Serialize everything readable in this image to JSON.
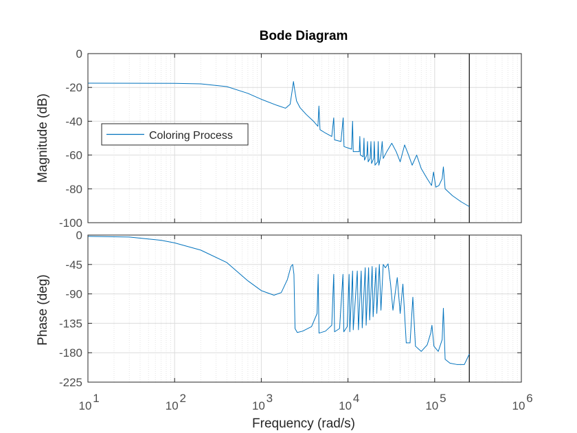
{
  "colors": {
    "series": "#0072bd",
    "grid": "#dcdcdc",
    "axis": "#262626",
    "marker": "#000000"
  },
  "chart_data": {
    "type": "line",
    "title": "Bode Diagram",
    "xlabel": "Frequency  (rad/s)",
    "xscale": "log",
    "xlim": [
      10,
      1000000
    ],
    "x_ticks": [
      {
        "value": 10,
        "base": "10",
        "exp": "1"
      },
      {
        "value": 100,
        "base": "10",
        "exp": "2"
      },
      {
        "value": 1000,
        "base": "10",
        "exp": "3"
      },
      {
        "value": 10000,
        "base": "10",
        "exp": "4"
      },
      {
        "value": 100000,
        "base": "10",
        "exp": "5"
      },
      {
        "value": 1000000,
        "base": "10",
        "exp": "6"
      }
    ],
    "vertical_marker": 251000,
    "legend": {
      "label": "Coloring Process",
      "placement": "middle-left (magnitude axes)"
    },
    "magnitude": {
      "ylabel": "Magnitude (dB)",
      "ylim": [
        -100,
        0
      ],
      "yticks": [
        0,
        -20,
        -40,
        -60,
        -80,
        -100
      ],
      "series": [
        {
          "name": "Coloring Process",
          "points": [
            [
              10,
              -17.5
            ],
            [
              100,
              -17.6
            ],
            [
              200,
              -17.9
            ],
            [
              400,
              -19.5
            ],
            [
              700,
              -23.5
            ],
            [
              1000,
              -27
            ],
            [
              1500,
              -30.5
            ],
            [
              1900,
              -32.3
            ],
            [
              2150,
              -30
            ],
            [
              2300,
              -20
            ],
            [
              2350,
              -16.5
            ],
            [
              2420,
              -21
            ],
            [
              2550,
              -28
            ],
            [
              2800,
              -32
            ],
            [
              3300,
              -36
            ],
            [
              4000,
              -40
            ],
            [
              4500,
              -43
            ],
            [
              4620,
              -31
            ],
            [
              4760,
              -45
            ],
            [
              5500,
              -47
            ],
            [
              6500,
              -49
            ],
            [
              6850,
              -38
            ],
            [
              7000,
              -51
            ],
            [
              8300,
              -52
            ],
            [
              8800,
              -38
            ],
            [
              9000,
              -55
            ],
            [
              11000,
              -56.5
            ],
            [
              11300,
              -40
            ],
            [
              11500,
              -58
            ],
            [
              13500,
              -58
            ],
            [
              13700,
              -49
            ],
            [
              13900,
              -60
            ],
            [
              15000,
              -61
            ],
            [
              15300,
              -50
            ],
            [
              15500,
              -63
            ],
            [
              16500,
              -60
            ],
            [
              16800,
              -52
            ],
            [
              17100,
              -64
            ],
            [
              18000,
              -62
            ],
            [
              18400,
              -52
            ],
            [
              18700,
              -65
            ],
            [
              19800,
              -62
            ],
            [
              20100,
              -52
            ],
            [
              20500,
              -66
            ],
            [
              22000,
              -64
            ],
            [
              22300,
              -52
            ],
            [
              22700,
              -66
            ],
            [
              24000,
              -60
            ],
            [
              24800,
              -52
            ],
            [
              25500,
              -62
            ],
            [
              28000,
              -58
            ],
            [
              32000,
              -53
            ],
            [
              36000,
              -58
            ],
            [
              40000,
              -64
            ],
            [
              45000,
              -54
            ],
            [
              50000,
              -60
            ],
            [
              55000,
              -66
            ],
            [
              62000,
              -60
            ],
            [
              70000,
              -68
            ],
            [
              82000,
              -74
            ],
            [
              92000,
              -78
            ],
            [
              97000,
              -70
            ],
            [
              103000,
              -79
            ],
            [
              112000,
              -78
            ],
            [
              122000,
              -74
            ],
            [
              126000,
              -67
            ],
            [
              132000,
              -80
            ],
            [
              160000,
              -84
            ],
            [
              200000,
              -87.5
            ],
            [
              251000,
              -90.5
            ]
          ]
        }
      ]
    },
    "phase": {
      "ylabel": "Phase (deg)",
      "ylim": [
        -225,
        0
      ],
      "yticks": [
        0,
        -45,
        -90,
        -135,
        -180,
        -225
      ],
      "series": [
        {
          "name": "Coloring Process",
          "points": [
            [
              10,
              -2
            ],
            [
              30,
              -3
            ],
            [
              70,
              -8
            ],
            [
              100,
              -12
            ],
            [
              200,
              -23
            ],
            [
              400,
              -42
            ],
            [
              700,
              -70
            ],
            [
              1000,
              -85
            ],
            [
              1400,
              -92
            ],
            [
              1700,
              -88
            ],
            [
              2000,
              -68
            ],
            [
              2200,
              -48
            ],
            [
              2300,
              -45
            ],
            [
              2380,
              -60
            ],
            [
              2450,
              -143
            ],
            [
              2600,
              -149
            ],
            [
              3000,
              -147
            ],
            [
              3800,
              -140
            ],
            [
              4400,
              -120
            ],
            [
              4530,
              -60
            ],
            [
              4630,
              -150
            ],
            [
              5500,
              -147
            ],
            [
              6500,
              -138
            ],
            [
              6850,
              -60
            ],
            [
              7000,
              -148
            ],
            [
              8000,
              -143
            ],
            [
              8750,
              -60
            ],
            [
              8950,
              -148
            ],
            [
              9800,
              -140
            ],
            [
              10300,
              -60
            ],
            [
              10500,
              -148
            ],
            [
              11300,
              -55
            ],
            [
              11500,
              -145
            ],
            [
              12800,
              -55
            ],
            [
              13200,
              -145
            ],
            [
              14200,
              -55
            ],
            [
              14600,
              -142
            ],
            [
              15800,
              -50
            ],
            [
              16200,
              -138
            ],
            [
              17300,
              -50
            ],
            [
              17800,
              -130
            ],
            [
              19000,
              -48
            ],
            [
              19500,
              -125
            ],
            [
              21000,
              -50
            ],
            [
              21500,
              -120
            ],
            [
              23000,
              -45
            ],
            [
              24000,
              -115
            ],
            [
              25500,
              -45
            ],
            [
              27000,
              -50
            ],
            [
              29000,
              -44
            ],
            [
              31000,
              -75
            ],
            [
              33000,
              -115
            ],
            [
              37000,
              -65
            ],
            [
              40000,
              -120
            ],
            [
              43000,
              -75
            ],
            [
              47000,
              -165
            ],
            [
              52000,
              -165
            ],
            [
              56000,
              -95
            ],
            [
              60000,
              -170
            ],
            [
              70000,
              -178
            ],
            [
              82000,
              -168
            ],
            [
              90000,
              -150
            ],
            [
              93000,
              -138
            ],
            [
              98000,
              -170
            ],
            [
              110000,
              -178
            ],
            [
              122000,
              -160
            ],
            [
              126000,
              -112
            ],
            [
              132000,
              -190
            ],
            [
              150000,
              -196
            ],
            [
              180000,
              -198
            ],
            [
              220000,
              -198
            ],
            [
              251000,
              -182
            ]
          ]
        }
      ]
    }
  }
}
